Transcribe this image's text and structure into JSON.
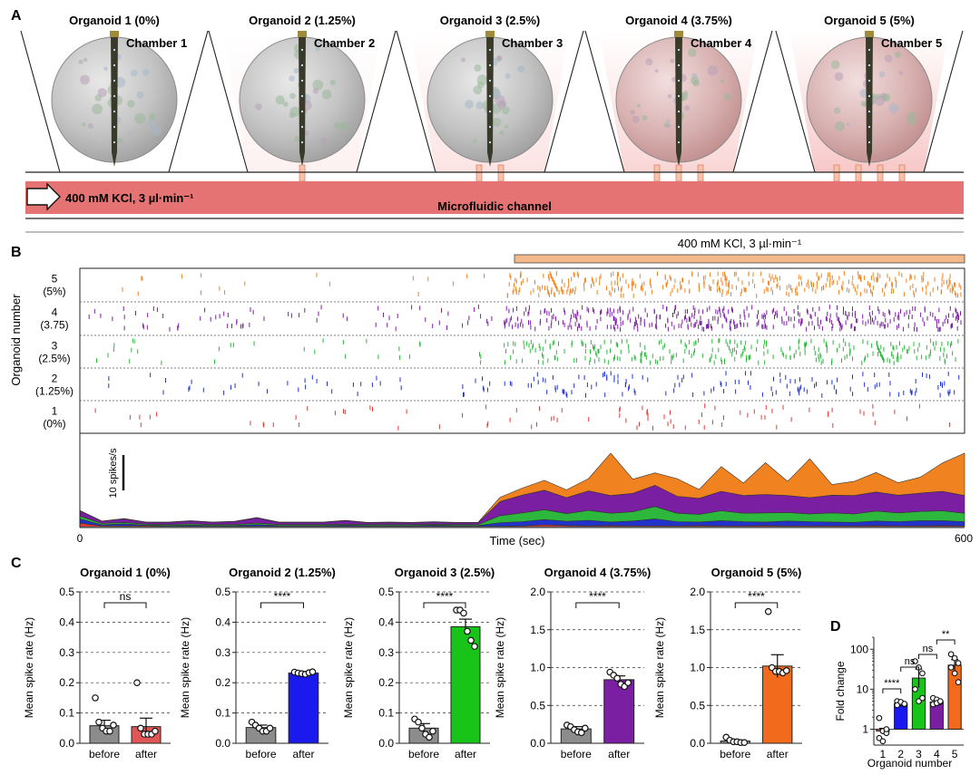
{
  "panels": {
    "A": "A",
    "B": "B",
    "C": "C",
    "D": "D"
  },
  "panelA": {
    "organoid_titles": [
      "Organoid 1 (0%)",
      "Organoid 2 (1.25%)",
      "Organoid 3 (2.5%)",
      "Organoid 4 (3.75%)",
      "Organoid 5 (5%)"
    ],
    "chamber_labels": [
      "Chamber 1",
      "Chamber 2",
      "Chamber 3",
      "Chamber 4",
      "Chamber 5"
    ],
    "inlet_label": "400 mM KCl, 3 µl·min⁻¹",
    "channel_label": "Microfluidic channel",
    "pores_per_chamber": [
      0,
      1,
      2,
      3,
      4
    ],
    "colors": {
      "channel": "#e57373",
      "tint": "#f8c8c8",
      "sphere": "#bdbdbd",
      "probe": "#3a3a2a"
    }
  },
  "panelB": {
    "stim_label": "400 mM KCl, 3 µl·min⁻¹",
    "ylabel": "Organoid number",
    "row_labels": [
      {
        "num": "5",
        "pct": "(5%)"
      },
      {
        "num": "4",
        "pct": "(3.75)"
      },
      {
        "num": "3",
        "pct": "(2.5%)"
      },
      {
        "num": "2",
        "pct": "(1.25%)"
      },
      {
        "num": "1",
        "pct": "(0%)"
      }
    ],
    "row_colors": [
      "#f0831f",
      "#7b1fa2",
      "#2db83d",
      "#2233cc",
      "#e53935"
    ],
    "scale_label": "10 spikes/s",
    "xlabel": "Time (sec)",
    "x_ticks": [
      "0",
      "600"
    ],
    "stim_start_s": 285
  },
  "chart_data": [
    {
      "type": "area",
      "title": "",
      "xlabel": "Time (sec)",
      "ylabel": "",
      "xlim": [
        0,
        600
      ],
      "x": [
        0,
        15,
        30,
        45,
        60,
        75,
        90,
        105,
        120,
        135,
        150,
        165,
        180,
        195,
        210,
        225,
        240,
        255,
        270,
        285,
        300,
        315,
        330,
        345,
        360,
        375,
        390,
        405,
        420,
        435,
        450,
        465,
        480,
        495,
        510,
        525,
        540,
        555,
        570,
        585,
        600
      ],
      "series": [
        {
          "name": "1",
          "color": "#e53935",
          "values": [
            1.0,
            0.2,
            0.2,
            0.2,
            0.1,
            0.1,
            0.1,
            0.1,
            0.1,
            0.1,
            0.1,
            0.1,
            0.1,
            0.1,
            0.1,
            0.1,
            0.1,
            0.1,
            0.1,
            0.1,
            0.2,
            0.5,
            0.3,
            0.2,
            0.3,
            0.2,
            0.2,
            0.2,
            0.3,
            0.2,
            0.2,
            0.3,
            0.2,
            0.2,
            0.2,
            0.2,
            0.3,
            0.2,
            0.2,
            0.3,
            0.2
          ]
        },
        {
          "name": "2",
          "color": "#2233cc",
          "values": [
            1.2,
            0.3,
            0.6,
            0.2,
            0.2,
            0.3,
            0.2,
            0.2,
            0.5,
            0.2,
            0.2,
            0.2,
            0.3,
            0.2,
            0.2,
            0.2,
            0.3,
            0.2,
            0.2,
            1.0,
            1.2,
            1.5,
            1.2,
            1.6,
            1.0,
            1.4,
            2.0,
            1.2,
            1.0,
            1.5,
            1.2,
            1.0,
            1.4,
            1.2,
            1.1,
            1.0,
            1.3,
            1.2,
            1.5,
            1.4,
            1.2
          ]
        },
        {
          "name": "3",
          "color": "#2db83d",
          "values": [
            0.8,
            0.4,
            0.4,
            0.3,
            0.3,
            0.4,
            0.3,
            0.3,
            0.4,
            0.3,
            0.3,
            0.3,
            0.3,
            0.3,
            0.3,
            0.3,
            0.3,
            0.3,
            0.3,
            2.0,
            2.5,
            2.8,
            2.2,
            2.8,
            2.5,
            2.6,
            3.5,
            2.4,
            2.2,
            2.8,
            2.4,
            2.6,
            2.4,
            2.2,
            2.6,
            2.4,
            2.8,
            2.5,
            2.6,
            2.8,
            2.4
          ]
        },
        {
          "name": "4",
          "color": "#7b1fa2",
          "values": [
            1.5,
            0.6,
            1.0,
            0.5,
            0.6,
            0.8,
            0.6,
            0.8,
            1.5,
            0.6,
            0.6,
            0.6,
            1.0,
            0.5,
            0.6,
            0.5,
            0.6,
            0.5,
            0.5,
            4.0,
            5.0,
            5.5,
            4.5,
            5.5,
            5.0,
            5.2,
            6.0,
            4.8,
            4.5,
            5.5,
            5.0,
            5.2,
            4.8,
            4.6,
            5.0,
            5.2,
            5.4,
            5.0,
            5.2,
            5.5,
            5.0
          ]
        },
        {
          "name": "5",
          "color": "#f0831f",
          "values": [
            0.1,
            0.1,
            0.1,
            0.1,
            0.1,
            0.1,
            0.1,
            0.1,
            0.1,
            0.1,
            0.1,
            0.1,
            0.1,
            0.1,
            0.1,
            0.1,
            0.1,
            0.1,
            0.1,
            1.2,
            2.0,
            2.8,
            2.2,
            3.5,
            12.0,
            4.0,
            3.5,
            5.0,
            2.5,
            7.0,
            3.5,
            9.0,
            4.0,
            11.0,
            3.0,
            4.0,
            5.5,
            3.5,
            4.5,
            8.0,
            12.0
          ]
        }
      ]
    },
    {
      "type": "bar",
      "title": "Organoid 1 (0%)",
      "xlabel": "",
      "ylabel": "Mean spike rate (Hz)",
      "ylim": [
        0,
        0.5
      ],
      "y_ticks": [
        "0.0",
        "0.1",
        "0.2",
        "0.3",
        "0.4",
        "0.5"
      ],
      "categories": [
        "before",
        "after"
      ],
      "values": [
        0.058,
        0.055
      ],
      "errors": [
        0.018,
        0.028
      ],
      "colors": [
        "#8c8c8c",
        "#e05555"
      ],
      "points": [
        [
          0.15,
          0.07,
          0.05,
          0.04,
          0.04,
          0.06
        ],
        [
          0.2,
          0.05,
          0.03,
          0.03,
          0.03,
          0.04
        ]
      ],
      "significance": "ns"
    },
    {
      "type": "bar",
      "title": "Organoid 2 (1.25%)",
      "xlabel": "",
      "ylabel": "Mean spike rate (Hz)",
      "ylim": [
        0,
        0.5
      ],
      "y_ticks": [
        "0.0",
        "0.1",
        "0.2",
        "0.3",
        "0.4",
        "0.5"
      ],
      "categories": [
        "before",
        "after"
      ],
      "values": [
        0.052,
        0.232
      ],
      "errors": [
        0.008,
        0.003
      ],
      "colors": [
        "#8c8c8c",
        "#1a1aee"
      ],
      "points": [
        [
          0.07,
          0.06,
          0.05,
          0.04,
          0.04,
          0.05
        ],
        [
          0.235,
          0.232,
          0.23,
          0.228,
          0.233,
          0.236
        ]
      ],
      "significance": "****"
    },
    {
      "type": "bar",
      "title": "Organoid 3 (2.5%)",
      "xlabel": "",
      "ylabel": "Mean spike rate (Hz)",
      "ylim": [
        0,
        0.5
      ],
      "y_ticks": [
        "0.0",
        "0.1",
        "0.2",
        "0.3",
        "0.4",
        "0.5"
      ],
      "categories": [
        "before",
        "after"
      ],
      "values": [
        0.05,
        0.385
      ],
      "errors": [
        0.015,
        0.025
      ],
      "colors": [
        "#8c8c8c",
        "#19c419"
      ],
      "points": [
        [
          0.08,
          0.07,
          0.05,
          0.03,
          0.02,
          0.04
        ],
        [
          0.44,
          0.44,
          0.43,
          0.37,
          0.34,
          0.32
        ]
      ],
      "significance": "****"
    },
    {
      "type": "bar",
      "title": "Organoid 4 (3.75%)",
      "xlabel": "",
      "ylabel": "Mean spike rate (Hz)",
      "ylim": [
        0,
        2.0
      ],
      "y_ticks": [
        "0.0",
        "0.5",
        "1.0",
        "1.5",
        "2.0"
      ],
      "categories": [
        "before",
        "after"
      ],
      "values": [
        0.19,
        0.84
      ],
      "errors": [
        0.03,
        0.05
      ],
      "colors": [
        "#8c8c8c",
        "#7b1fa2"
      ],
      "points": [
        [
          0.24,
          0.22,
          0.18,
          0.15,
          0.14,
          0.2
        ],
        [
          0.94,
          0.9,
          0.86,
          0.78,
          0.75,
          0.8
        ]
      ],
      "significance": "****"
    },
    {
      "type": "bar",
      "title": "Organoid 5 (5%)",
      "xlabel": "",
      "ylabel": "Mean spike rate (Hz)",
      "ylim": [
        0,
        2.0
      ],
      "y_ticks": [
        "0.0",
        "0.5",
        "1.0",
        "1.5",
        "2.0"
      ],
      "categories": [
        "before",
        "after"
      ],
      "values": [
        0.03,
        1.02
      ],
      "errors": [
        0.015,
        0.15
      ],
      "colors": [
        "#8c8c8c",
        "#f26a1b"
      ],
      "points": [
        [
          0.08,
          0.04,
          0.02,
          0.02,
          0.01,
          0.01
        ],
        [
          1.74,
          1.0,
          0.95,
          0.95,
          0.93,
          0.96
        ]
      ],
      "significance": "****"
    },
    {
      "type": "bar",
      "title": "",
      "xlabel": "Organoid number",
      "ylabel": "Fold change",
      "yscale": "log",
      "ylim": [
        0.4,
        200
      ],
      "y_ticks": [
        "1",
        "10",
        "100"
      ],
      "categories": [
        "1",
        "2",
        "3",
        "4",
        "5"
      ],
      "values": [
        0.9,
        4.4,
        19,
        4.8,
        40
      ],
      "err_low": [
        0.75,
        3.9,
        11,
        4.0,
        28
      ],
      "err_high": [
        1.05,
        4.9,
        32,
        5.7,
        55
      ],
      "colors": [
        "#e05555",
        "#1a1aee",
        "#19c419",
        "#7b1fa2",
        "#f26a1b"
      ],
      "points": [
        [
          1.9,
          0.9,
          0.8,
          0.6,
          0.5,
          1.0
        ],
        [
          5.0,
          4.5,
          4.2,
          4.0,
          4.8,
          4.3
        ],
        [
          50,
          35,
          25,
          10,
          5,
          6
        ],
        [
          6.0,
          5.5,
          4.8,
          4.2,
          4.5,
          5.0
        ],
        [
          75,
          60,
          45,
          35,
          25,
          15
        ]
      ],
      "significance": [
        {
          "pair": [
            1,
            2
          ],
          "label": "****"
        },
        {
          "pair": [
            2,
            3
          ],
          "label": "ns"
        },
        {
          "pair": [
            3,
            4
          ],
          "label": "ns"
        },
        {
          "pair": [
            4,
            5
          ],
          "label": "**"
        }
      ]
    }
  ]
}
